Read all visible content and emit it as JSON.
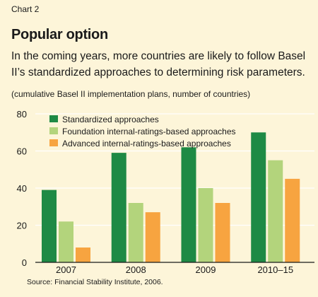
{
  "header": {
    "chart_label": "Chart 2",
    "title": "Popular option",
    "subtitle": "In the coming years, more countries are likely to follow Basel II’s standardized approaches to determining risk parameters.",
    "units": "(cumulative Basel II implementation plans, number of countries)"
  },
  "footer": {
    "source": "Source: Financial Stability Institute, 2006."
  },
  "colors": {
    "background": "#fdf5d9",
    "standardized": "#1e8a45",
    "foundation": "#b3d47c",
    "advanced": "#f7a440",
    "gridline": "#ffffff"
  },
  "chart_data": {
    "type": "bar",
    "categories": [
      "2007",
      "2008",
      "2009",
      "2010–15"
    ],
    "series": [
      {
        "name": "Standardized approaches",
        "values": [
          39,
          59,
          62,
          70
        ]
      },
      {
        "name": "Foundation internal-ratings-based approaches",
        "values": [
          22,
          32,
          40,
          55
        ]
      },
      {
        "name": "Advanced internal-ratings-based approaches",
        "values": [
          8,
          27,
          32,
          45
        ]
      }
    ],
    "ylim": [
      0,
      80
    ],
    "yticks": [
      0,
      20,
      40,
      60,
      80
    ],
    "grid": true,
    "legend_position": "top-left"
  }
}
